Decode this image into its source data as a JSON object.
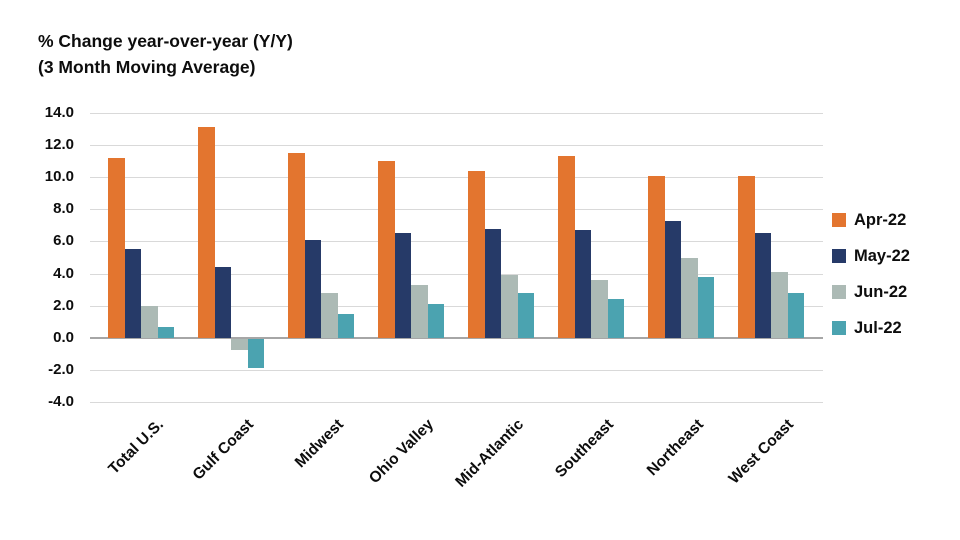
{
  "title": {
    "line1": "% Change year-over-year (Y/Y)",
    "line2": "(3 Month Moving Average)"
  },
  "colors": {
    "apr": "#E3752F",
    "may": "#263A68",
    "jun": "#ACBAB5",
    "jul": "#4BA3B0",
    "gridline": "#D9D9D9",
    "zero_axis": "#A6A6A6",
    "text": "#0D0D0D",
    "background": "#FFFFFF"
  },
  "chart_data": {
    "type": "bar",
    "title": "% Change year-over-year (Y/Y) (3 Month Moving Average)",
    "categories": [
      "Total U.S.",
      "Gulf Coast",
      "Midwest",
      "Ohio Valley",
      "Mid-Atlantic",
      "Southeast",
      "Northeast",
      "West Coast"
    ],
    "series": [
      {
        "name": "Apr-22",
        "color": "#E3752F",
        "values": [
          11.2,
          13.1,
          11.5,
          11.0,
          10.4,
          11.3,
          10.1,
          10.1
        ]
      },
      {
        "name": "May-22",
        "color": "#263A68",
        "values": [
          5.5,
          4.4,
          6.1,
          6.5,
          6.8,
          6.7,
          7.3,
          6.5
        ]
      },
      {
        "name": "Jun-22",
        "color": "#ACBAB5",
        "values": [
          2.0,
          -0.7,
          2.8,
          3.3,
          3.9,
          3.6,
          5.0,
          4.1
        ]
      },
      {
        "name": "Jul-22",
        "color": "#4BA3B0",
        "values": [
          0.7,
          -1.8,
          1.5,
          2.1,
          2.8,
          2.4,
          3.8,
          2.8
        ]
      }
    ],
    "xlabel": "",
    "ylabel": "% Change year-over-year (Y/Y), 3 Month Moving Average",
    "ylim": [
      -4.0,
      14.0
    ],
    "ytick_step": 2.0,
    "ytick_labels": [
      "14.0",
      "12.0",
      "10.0",
      "8.0",
      "6.0",
      "4.0",
      "2.0",
      "0.0",
      "-2.0",
      "-4.0"
    ],
    "grid": true,
    "legend_position": "right"
  }
}
